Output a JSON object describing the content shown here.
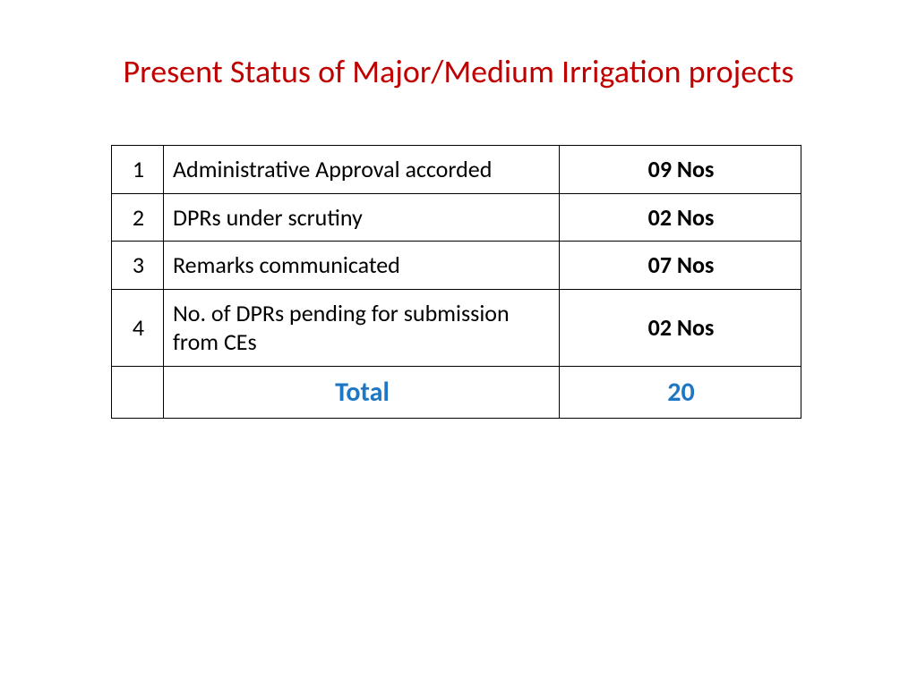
{
  "title": {
    "text": "Present Status of Major/Medium Irrigation projects",
    "color": "#c00000",
    "fontsize": 36
  },
  "table": {
    "border_color": "#000000",
    "body_fontsize": 26,
    "body_color": "#000000",
    "value_fontweight": 700,
    "columns": {
      "num_width": 58,
      "desc_width": 442,
      "val_width": 270
    },
    "rows": [
      {
        "num": "1",
        "desc": "Administrative Approval accorded",
        "value": "09 Nos"
      },
      {
        "num": "2",
        "desc": "DPRs under scrutiny",
        "value": "02 Nos"
      },
      {
        "num": "3",
        "desc": "Remarks communicated",
        "value": "07 Nos"
      },
      {
        "num": "4",
        "desc": "No. of DPRs pending for submission from CEs",
        "value": "02 Nos"
      }
    ],
    "total": {
      "num": "",
      "label": "Total",
      "value": "20",
      "color": "#1f77c4",
      "fontsize": 30,
      "fontweight": 700
    }
  },
  "background_color": "#ffffff"
}
